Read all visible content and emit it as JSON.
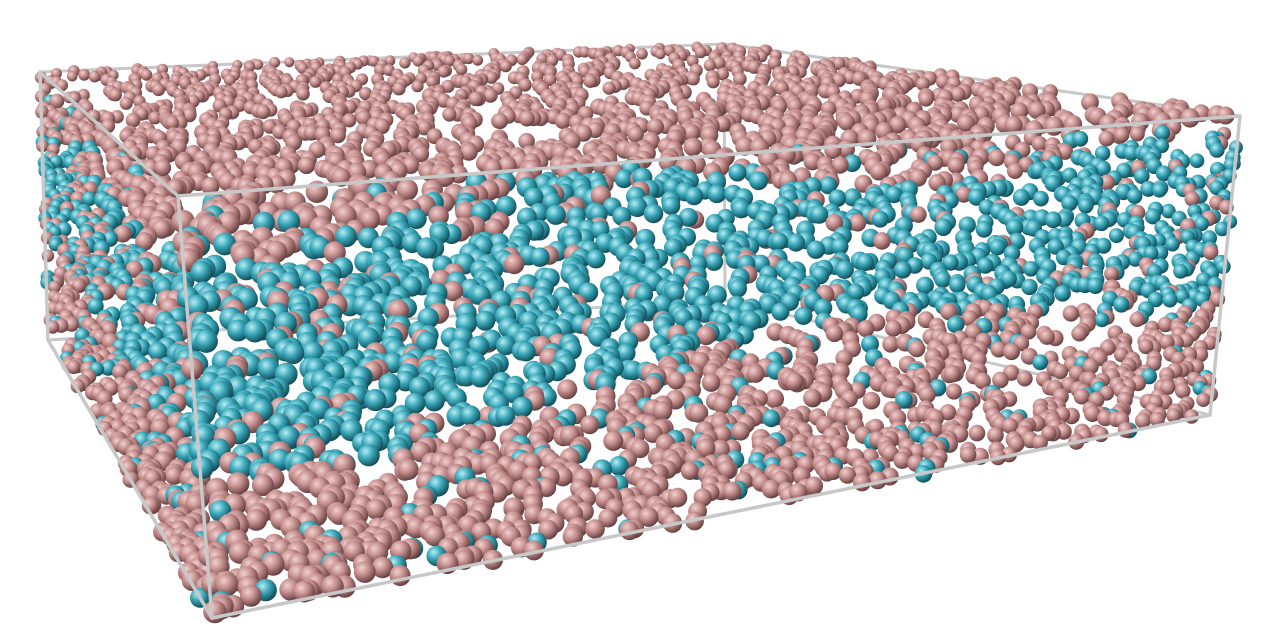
{
  "scene": {
    "subject": "molecular-dynamics-simulation-box",
    "colors": {
      "background": "#ffffff",
      "box_edge": "#c8c8c8",
      "species_a": {
        "highlight": "#f1d0cf",
        "base": "#c48e8d",
        "shadow": "#5e3a3a"
      },
      "species_b": {
        "highlight": "#b6ecf4",
        "base": "#3aa7b8",
        "shadow": "#0e4652"
      }
    },
    "species": [
      {
        "id": "a",
        "color_name": "pink"
      },
      {
        "id": "b",
        "color_name": "teal"
      }
    ]
  }
}
